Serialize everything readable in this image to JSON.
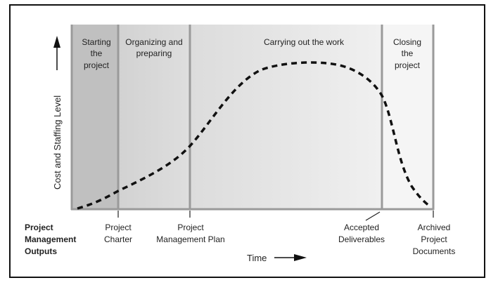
{
  "y_axis_label": "Cost and Staffing Level",
  "x_axis_label": "Time",
  "phases": [
    {
      "lines": [
        "Starting",
        "the",
        "project"
      ]
    },
    {
      "lines": [
        "Organizing and",
        "preparing"
      ]
    },
    {
      "lines": [
        "Carrying out the work"
      ]
    },
    {
      "lines": [
        "Closing",
        "the",
        "project"
      ]
    }
  ],
  "outputs_heading": [
    "Project",
    "Management",
    "Outputs"
  ],
  "outputs": [
    {
      "lines": [
        "Project",
        "Charter"
      ]
    },
    {
      "lines": [
        "Project",
        "Management Plan"
      ]
    },
    {
      "lines": [
        "Accepted",
        "Deliverables"
      ]
    },
    {
      "lines": [
        "Archived",
        "Project",
        "Documents"
      ]
    }
  ]
}
